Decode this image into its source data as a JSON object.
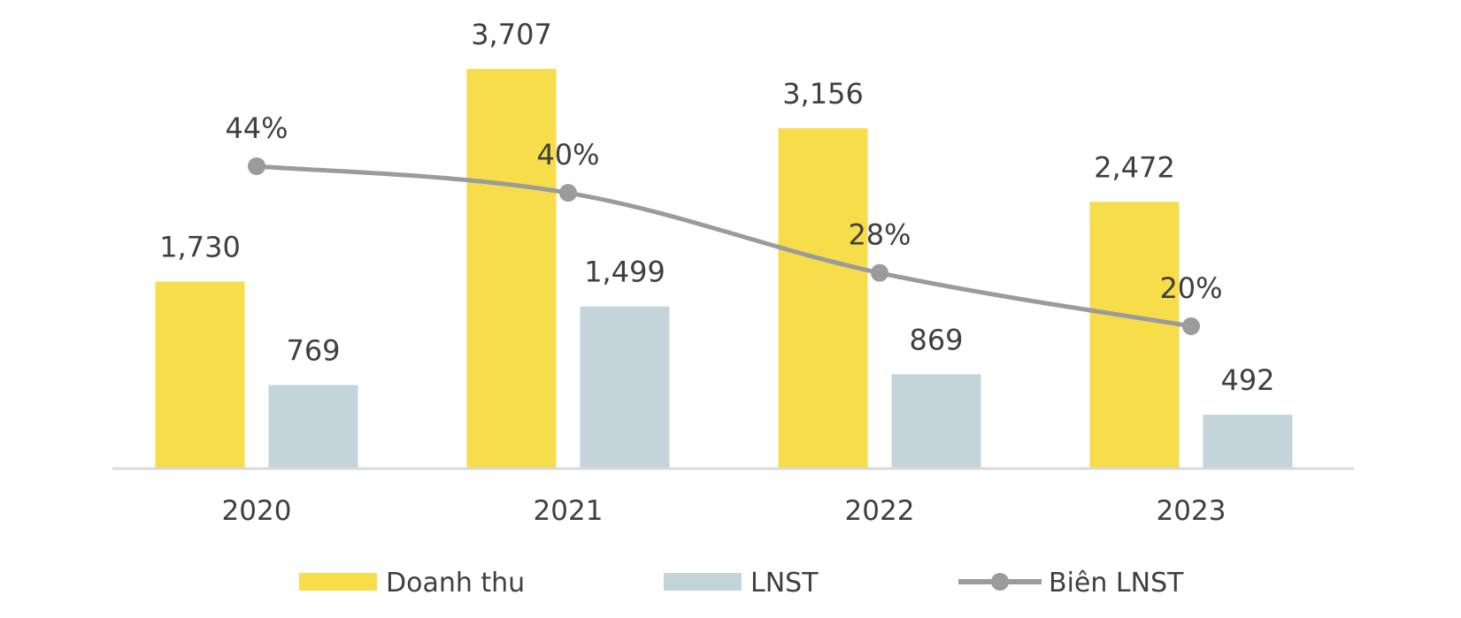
{
  "chart_data": {
    "type": "bar",
    "categories": [
      "2020",
      "2021",
      "2022",
      "2023"
    ],
    "series": [
      {
        "name": "Doanh thu",
        "kind": "bar",
        "values": [
          1730,
          3707,
          3156,
          2472
        ],
        "labels": [
          "1,730",
          "3,707",
          "3,156",
          "2,472"
        ],
        "color": "#F7DD4A"
      },
      {
        "name": "LNST",
        "kind": "bar",
        "values": [
          769,
          1499,
          869,
          492
        ],
        "labels": [
          "769",
          "1,499",
          "869",
          "492"
        ],
        "color": "#C3D4DA"
      },
      {
        "name": "Biên LNST",
        "kind": "line",
        "axis": "secondary",
        "values": [
          44,
          40,
          28,
          20
        ],
        "labels": [
          "44%",
          "40%",
          "28%",
          "20%"
        ],
        "color": "#9B9B9B"
      }
    ],
    "ylim": [
      0,
      3707
    ],
    "y2lim": [
      0,
      100
    ],
    "legend": "bottom",
    "grid": false
  }
}
